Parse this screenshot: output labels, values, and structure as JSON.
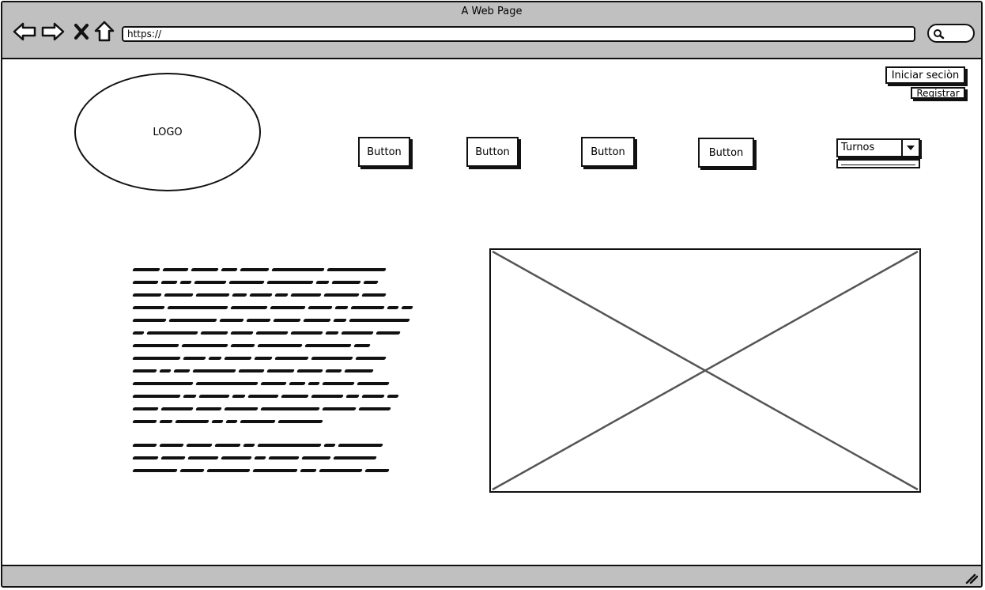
{
  "window": {
    "title": "A Web Page"
  },
  "browser": {
    "url": "https://",
    "icons": [
      "back-arrow-icon",
      "forward-arrow-icon",
      "close-x-icon",
      "home-icon",
      "search-icon"
    ]
  },
  "header": {
    "logo_label": "LOGO",
    "login_label": "Iniciar seciòn",
    "register_label": "Registrar"
  },
  "nav": {
    "buttons": [
      {
        "label": "Button"
      },
      {
        "label": "Button"
      },
      {
        "label": "Button"
      },
      {
        "label": "Button"
      }
    ]
  },
  "turnos": {
    "selected": "Turnos"
  },
  "colors": {
    "chrome": "#c0c0c0",
    "ink": "#111111",
    "placeholder_x": "#555555"
  }
}
